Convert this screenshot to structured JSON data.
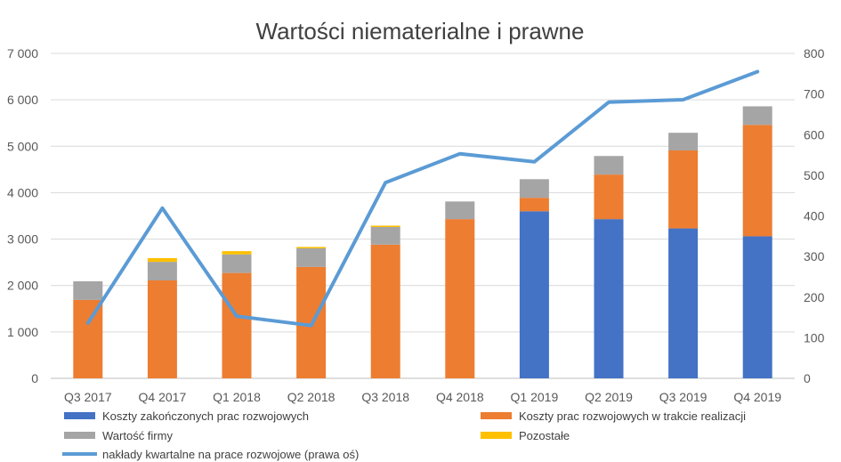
{
  "chart_data": {
    "type": "bar",
    "stacked": true,
    "title": "Wartości niematerialne i prawne",
    "categories": [
      "Q3 2017",
      "Q4 2017",
      "Q1 2018",
      "Q2 2018",
      "Q3 2018",
      "Q4 2018",
      "Q1 2019",
      "Q2 2019",
      "Q3 2019",
      "Q4 2019"
    ],
    "series": [
      {
        "name": "Koszty zakończonych prac rozwojowych",
        "color": "#4472C4",
        "axis": "left",
        "values": [
          0,
          0,
          0,
          0,
          0,
          0,
          3600,
          3430,
          3230,
          3060
        ]
      },
      {
        "name": "Koszty prac rozwojowych w trakcie realizacji",
        "color": "#ED7D31",
        "axis": "left",
        "values": [
          1690,
          2110,
          2270,
          2400,
          2880,
          3430,
          290,
          960,
          1680,
          2400
        ]
      },
      {
        "name": "Wartość firmy",
        "color": "#A5A5A5",
        "axis": "left",
        "values": [
          400,
          400,
          400,
          400,
          380,
          380,
          400,
          400,
          380,
          400
        ]
      },
      {
        "name": "Pozostałe",
        "color": "#FFC000",
        "axis": "left",
        "values": [
          0,
          80,
          70,
          30,
          30,
          0,
          0,
          0,
          0,
          0
        ]
      },
      {
        "name": "nakłady kwartalne na prace rozwojowe (prawa oś)",
        "color": "#5B9BD5",
        "axis": "right",
        "type": "line",
        "values": [
          136,
          419,
          153,
          130,
          482,
          553,
          533,
          680,
          686,
          755
        ]
      }
    ],
    "ylim_left": [
      0,
      7000
    ],
    "ylim_right": [
      0,
      800
    ],
    "yticks_left": [
      "0",
      "1 000",
      "2 000",
      "3 000",
      "4 000",
      "5 000",
      "6 000",
      "7 000"
    ],
    "yticks_right": [
      "0",
      "100",
      "200",
      "300",
      "400",
      "500",
      "600",
      "700",
      "800"
    ],
    "grid": true,
    "legend_position": "bottom"
  }
}
